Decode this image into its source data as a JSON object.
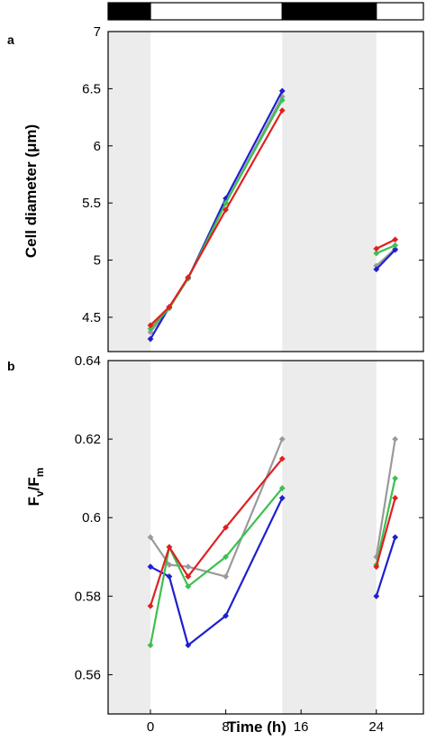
{
  "chart_data": [
    {
      "panel_label": "a",
      "type": "line",
      "ylabel": "Cell diameter (μm)",
      "ylim": [
        4.2,
        7
      ],
      "xlim": [
        -4.5,
        29
      ],
      "yticks": [
        "4.5",
        "5",
        "5.5",
        "6",
        "6.5",
        "7"
      ],
      "ytick_values": [
        4.5,
        5,
        5.5,
        6,
        6.5,
        7
      ],
      "dark_periods_shaded": [
        [
          -4.5,
          0
        ],
        [
          14,
          24
        ]
      ],
      "colors": {
        "blue": "#1f1fd0",
        "green": "#3cc050",
        "red": "#e02020",
        "gray": "#9a9a9a"
      },
      "series": [
        {
          "color": "#9a9a9a",
          "segments": [
            {
              "x": [
                0,
                2,
                4,
                8,
                14
              ],
              "y": [
                4.37,
                4.58,
                4.84,
                5.5,
                6.43
              ]
            },
            {
              "x": [
                24,
                26
              ],
              "y": [
                4.95,
                5.1
              ]
            }
          ]
        },
        {
          "color": "#1f1fd0",
          "segments": [
            {
              "x": [
                0,
                2,
                4,
                8,
                14
              ],
              "y": [
                4.31,
                4.59,
                4.84,
                5.54,
                6.48
              ]
            },
            {
              "x": [
                24,
                26
              ],
              "y": [
                4.92,
                5.09
              ]
            }
          ]
        },
        {
          "color": "#3cc050",
          "segments": [
            {
              "x": [
                0,
                2,
                4,
                8,
                14
              ],
              "y": [
                4.4,
                4.58,
                4.84,
                5.5,
                6.4
              ]
            },
            {
              "x": [
                24,
                26
              ],
              "y": [
                5.06,
                5.13
              ]
            }
          ]
        },
        {
          "color": "#e02020",
          "segments": [
            {
              "x": [
                0,
                2,
                4,
                8,
                14
              ],
              "y": [
                4.43,
                4.59,
                4.85,
                5.44,
                6.31
              ]
            },
            {
              "x": [
                24,
                26
              ],
              "y": [
                5.1,
                5.18
              ]
            }
          ]
        }
      ]
    },
    {
      "panel_label": "b",
      "type": "line",
      "ylabel_main": "F",
      "ylabel_sub1": "v",
      "ylabel_mid": "/F",
      "ylabel_sub2": "m",
      "xlabel": "Time (h)",
      "ylim": [
        0.55,
        0.64
      ],
      "xlim": [
        -4.5,
        29
      ],
      "yticks": [
        "0.56",
        "0.58",
        "0.6",
        "0.62",
        "0.64"
      ],
      "ytick_values": [
        0.56,
        0.58,
        0.6,
        0.62,
        0.64
      ],
      "xticks": [
        "0",
        "8",
        "16",
        "24"
      ],
      "xtick_values": [
        0,
        8,
        16,
        24
      ],
      "dark_periods_shaded": [
        [
          -4.5,
          0
        ],
        [
          14,
          24
        ]
      ],
      "series": [
        {
          "color": "#9a9a9a",
          "segments": [
            {
              "x": [
                0,
                2,
                4,
                8,
                14
              ],
              "y": [
                0.595,
                0.588,
                0.5875,
                0.585,
                0.62
              ]
            },
            {
              "x": [
                24,
                26
              ],
              "y": [
                0.59,
                0.62
              ]
            }
          ]
        },
        {
          "color": "#1f1fd0",
          "segments": [
            {
              "x": [
                0,
                2,
                4,
                8,
                14
              ],
              "y": [
                0.5875,
                0.585,
                0.5675,
                0.575,
                0.605
              ]
            },
            {
              "x": [
                24,
                26
              ],
              "y": [
                0.58,
                0.595
              ]
            }
          ]
        },
        {
          "color": "#3cc050",
          "segments": [
            {
              "x": [
                0,
                2,
                4,
                8,
                14
              ],
              "y": [
                0.5675,
                0.5925,
                0.5825,
                0.59,
                0.6075
              ]
            },
            {
              "x": [
                24,
                26
              ],
              "y": [
                0.588,
                0.61
              ]
            }
          ]
        },
        {
          "color": "#e02020",
          "segments": [
            {
              "x": [
                0,
                2,
                4,
                8,
                14
              ],
              "y": [
                0.5775,
                0.5925,
                0.585,
                0.5975,
                0.615
              ]
            },
            {
              "x": [
                24,
                26
              ],
              "y": [
                0.5875,
                0.605
              ]
            }
          ]
        }
      ]
    }
  ],
  "light_dark_bar": {
    "segments": [
      {
        "from": -4.5,
        "to": 0,
        "state": "dark"
      },
      {
        "from": 0,
        "to": 14,
        "state": "light"
      },
      {
        "from": 14,
        "to": 24,
        "state": "dark"
      },
      {
        "from": 24,
        "to": 29,
        "state": "light"
      }
    ]
  }
}
